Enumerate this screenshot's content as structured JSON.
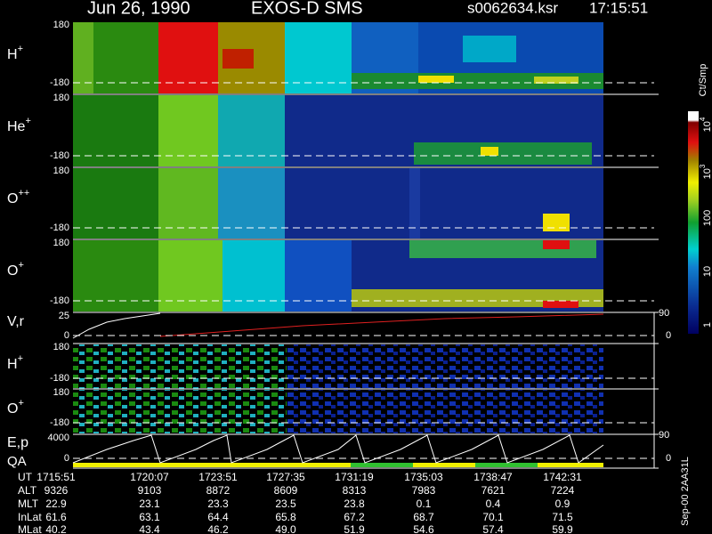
{
  "header": {
    "date": "Jun 26, 1990",
    "instrument": "EXOS-D SMS",
    "file": "s0062634.ksr",
    "time": "17:15:51"
  },
  "panels": [
    {
      "label": "H",
      "charge": "+",
      "ticks": [
        "180",
        "-180"
      ]
    },
    {
      "label": "He",
      "charge": "+",
      "ticks": [
        "180",
        "-180"
      ]
    },
    {
      "label": "O",
      "charge": "++",
      "ticks": [
        "180",
        "-180"
      ]
    },
    {
      "label": "O",
      "charge": "+",
      "ticks": [
        "180",
        "-180"
      ]
    },
    {
      "label": "V,r",
      "ticks": [
        "25",
        "0"
      ],
      "right_ticks": [
        "90",
        "0"
      ]
    },
    {
      "label": "H",
      "charge": "+",
      "ticks": [
        "180",
        "-180"
      ]
    },
    {
      "label": "O",
      "charge": "+",
      "ticks": [
        "180",
        "-180"
      ]
    },
    {
      "label": "E,p",
      "sublabel": "QA",
      "ticks": [
        "4000",
        "0"
      ],
      "right_ticks": [
        "90",
        "0"
      ]
    }
  ],
  "colorbar": {
    "unit": "Ct/Smp",
    "ticks": [
      {
        "base": "10",
        "exp": "4"
      },
      {
        "base": "10",
        "exp": "3"
      },
      "100",
      "10",
      "1"
    ]
  },
  "table": {
    "rows": [
      {
        "label": "UT",
        "cells": [
          "1715:51",
          "1720:07",
          "1723:51",
          "1727:35",
          "1731:19",
          "1735:03",
          "1738:47",
          "1742:31"
        ]
      },
      {
        "label": "ALT",
        "cells": [
          "9326",
          "9103",
          "8872",
          "8609",
          "8313",
          "7983",
          "7621",
          "7224"
        ]
      },
      {
        "label": "MLT",
        "cells": [
          "22.9",
          "23.1",
          "23.3",
          "23.5",
          "23.8",
          "0.1",
          "0.4",
          "0.9"
        ]
      },
      {
        "label": "InLat",
        "cells": [
          "61.6",
          "63.1",
          "64.4",
          "65.8",
          "67.2",
          "68.7",
          "70.1",
          "71.5"
        ]
      },
      {
        "label": "MLat",
        "cells": [
          "40.2",
          "43.4",
          "46.2",
          "49.0",
          "51.9",
          "54.6",
          "57.4",
          "59.9"
        ]
      }
    ]
  },
  "footer": "Sep-00 2AA31L"
}
